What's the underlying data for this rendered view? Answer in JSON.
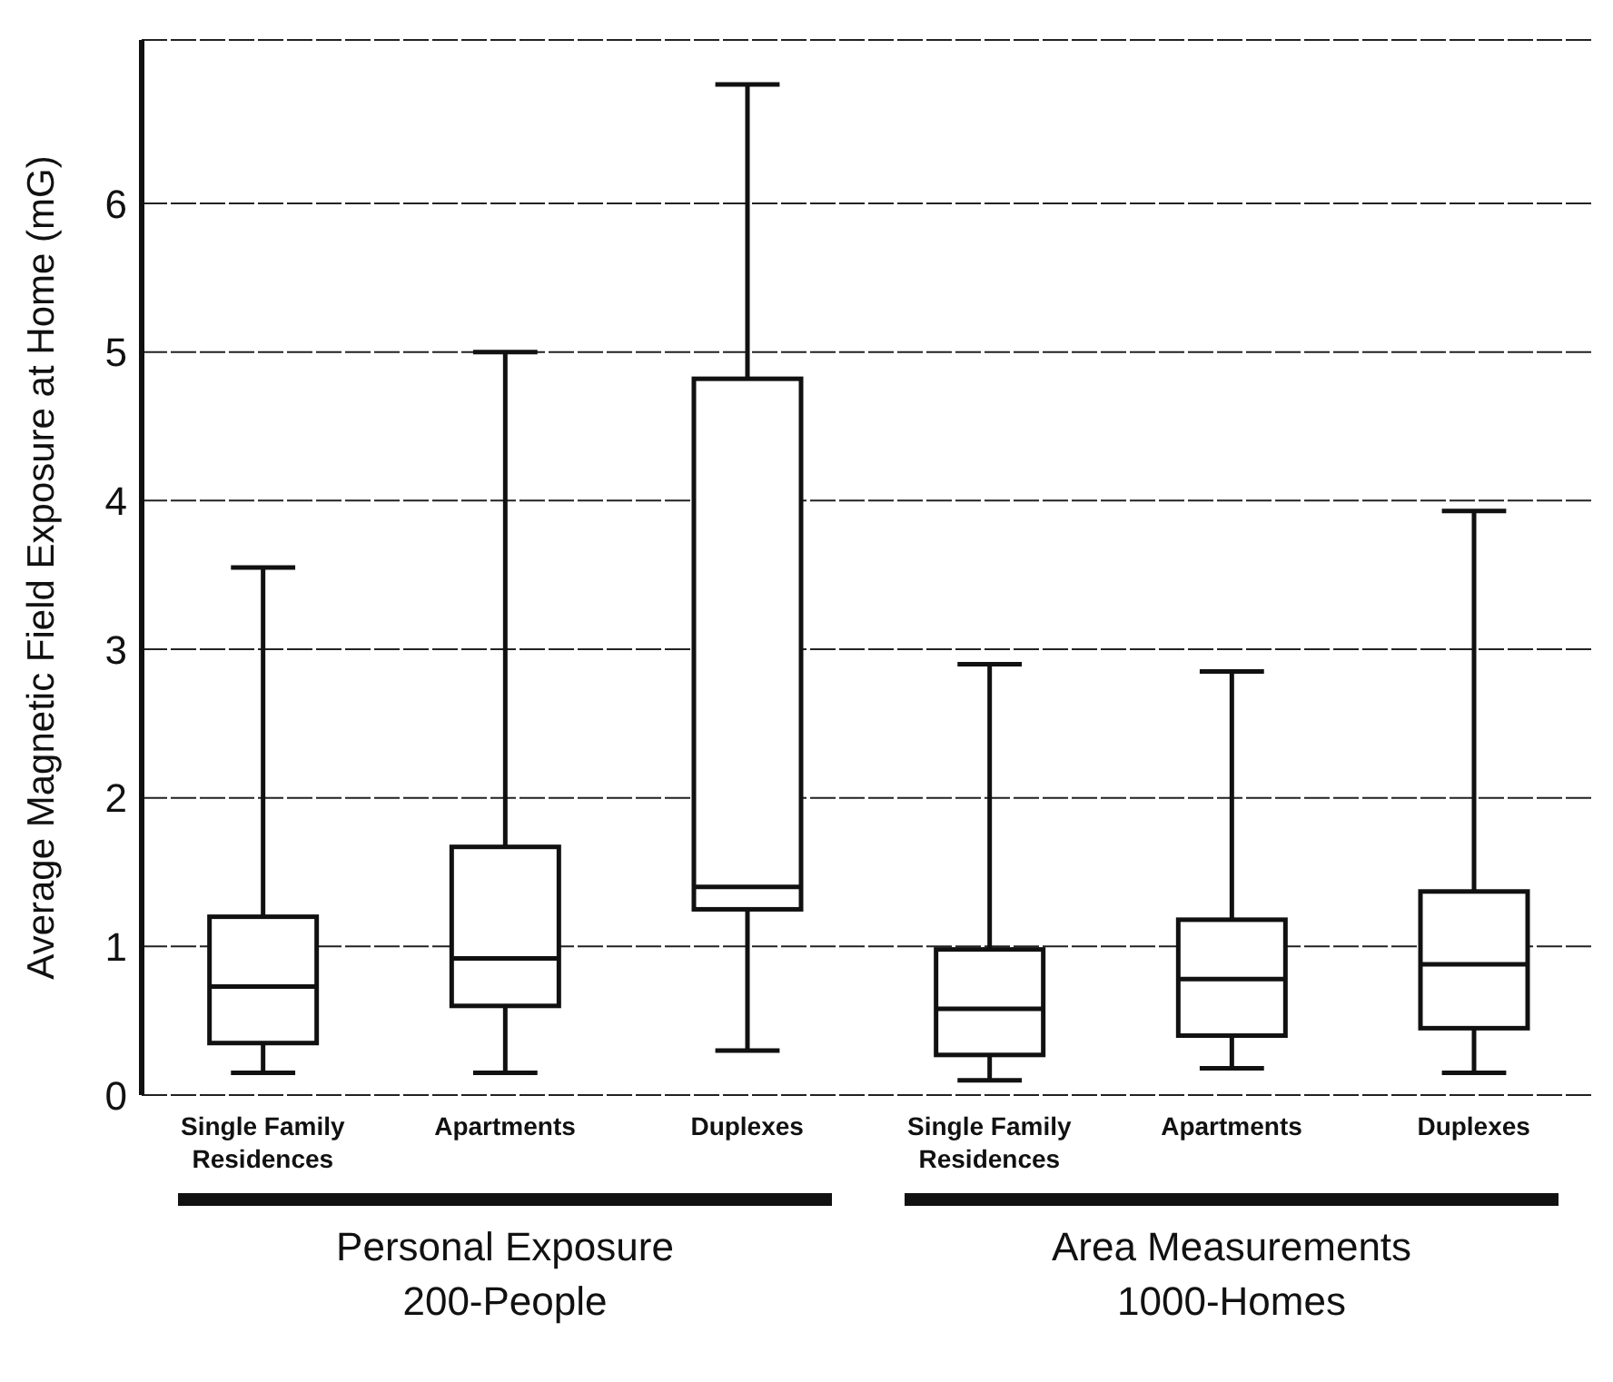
{
  "chart_data": {
    "type": "box",
    "ylabel": "Average Magnetic Field Exposure at Home (mG)",
    "categories": [
      "Single Family Residences",
      "Apartments",
      "Duplexes",
      "Single Family Residences",
      "Apartments",
      "Duplexes"
    ],
    "boxes": [
      {
        "low": 0.15,
        "q1": 0.35,
        "median": 0.73,
        "q3": 1.2,
        "high": 3.55
      },
      {
        "low": 0.15,
        "q1": 0.6,
        "median": 0.92,
        "q3": 1.67,
        "high": 5.0
      },
      {
        "low": 0.3,
        "q1": 1.25,
        "median": 1.4,
        "q3": 4.82,
        "high": 6.8
      },
      {
        "low": 0.1,
        "q1": 0.27,
        "median": 0.58,
        "q3": 0.98,
        "high": 2.9
      },
      {
        "low": 0.18,
        "q1": 0.4,
        "median": 0.78,
        "q3": 1.18,
        "high": 2.85
      },
      {
        "low": 0.15,
        "q1": 0.45,
        "median": 0.88,
        "q3": 1.37,
        "high": 3.93
      }
    ],
    "ylim": [
      0,
      7.1
    ],
    "yticks": [
      0,
      1,
      2,
      3,
      4,
      5,
      6
    ],
    "grid": "y",
    "annotations": [
      "Personal Exposure\n200-People",
      "Area Measurements\n1000-Homes"
    ]
  }
}
